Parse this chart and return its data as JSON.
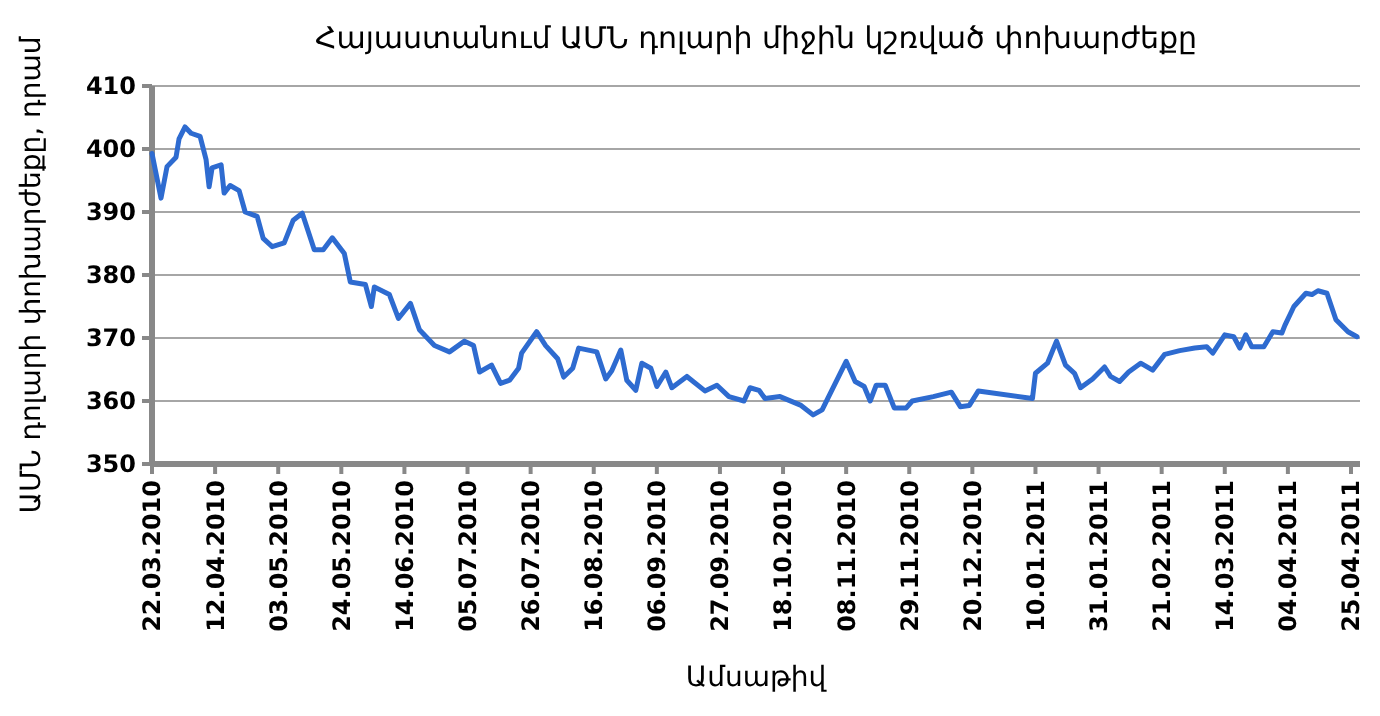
{
  "chart_data": {
    "type": "line",
    "title": "Հայաստանում ԱՄՆ դոլարի միջին կշռված փոխարժեքը",
    "xlabel": "Ամսաթիվ",
    "ylabel": "ԱՄՆ դոլարի փոխարժեքը, դրամ",
    "x": [
      "2010-03-22",
      "2010-03-25",
      "2010-03-27",
      "2010-03-30",
      "2010-03-31",
      "2010-04-02",
      "2010-04-04",
      "2010-04-07",
      "2010-04-09",
      "2010-04-10",
      "2010-04-11",
      "2010-04-14",
      "2010-04-15",
      "2010-04-17",
      "2010-04-20",
      "2010-04-22",
      "2010-04-26",
      "2010-04-28",
      "2010-05-01",
      "2010-05-05",
      "2010-05-08",
      "2010-05-11",
      "2010-05-15",
      "2010-05-18",
      "2010-05-21",
      "2010-05-25",
      "2010-05-27",
      "2010-06-01",
      "2010-06-03",
      "2010-06-04",
      "2010-06-09",
      "2010-06-12",
      "2010-06-16",
      "2010-06-19",
      "2010-06-24",
      "2010-06-29",
      "2010-07-04",
      "2010-07-07",
      "2010-07-09",
      "2010-07-13",
      "2010-07-16",
      "2010-07-19",
      "2010-07-22",
      "2010-07-23",
      "2010-07-28",
      "2010-07-31",
      "2010-08-04",
      "2010-08-06",
      "2010-08-09",
      "2010-08-11",
      "2010-08-17",
      "2010-08-20",
      "2010-08-22",
      "2010-08-25",
      "2010-08-27",
      "2010-08-30",
      "2010-09-01",
      "2010-09-04",
      "2010-09-06",
      "2010-09-09",
      "2010-09-11",
      "2010-09-16",
      "2010-09-22",
      "2010-09-26",
      "2010-09-30",
      "2010-10-05",
      "2010-10-07",
      "2010-10-10",
      "2010-10-12",
      "2010-10-17",
      "2010-10-24",
      "2010-10-28",
      "2010-10-31",
      "2010-11-08",
      "2010-11-11",
      "2010-11-14",
      "2010-11-16",
      "2010-11-18",
      "2010-11-21",
      "2010-11-24",
      "2010-11-28",
      "2010-11-30",
      "2010-12-07",
      "2010-12-13",
      "2010-12-16",
      "2010-12-19",
      "2010-12-22",
      "2011-01-09",
      "2011-01-10",
      "2011-01-14",
      "2011-01-17",
      "2011-01-20",
      "2011-01-23",
      "2011-01-25",
      "2011-01-29",
      "2011-02-02",
      "2011-02-04",
      "2011-02-07",
      "2011-02-10",
      "2011-02-14",
      "2011-02-18",
      "2011-02-22",
      "2011-02-27",
      "2011-03-04",
      "2011-03-08",
      "2011-03-10",
      "2011-03-14",
      "2011-03-17",
      "2011-03-19",
      "2011-03-21",
      "2011-03-23",
      "2011-03-27",
      "2011-03-30",
      "2011-04-02",
      "2011-04-03",
      "2011-04-06",
      "2011-04-10",
      "2011-04-12",
      "2011-04-14",
      "2011-04-17",
      "2011-04-20",
      "2011-04-24",
      "2011-04-27"
    ],
    "series": [
      {
        "color": "#2e6bd0",
        "values": [
          399.3,
          392.2,
          397.2,
          398.7,
          401.6,
          403.5,
          402.5,
          402.0,
          398.3,
          394.0,
          397.0,
          397.5,
          393.0,
          394.2,
          393.4,
          390.0,
          389.3,
          385.8,
          384.5,
          385.1,
          388.7,
          389.8,
          384.0,
          384.0,
          385.9,
          383.4,
          378.9,
          378.5,
          375.0,
          378.1,
          376.9,
          373.1,
          375.5,
          371.3,
          368.8,
          367.8,
          369.5,
          368.8,
          364.6,
          365.7,
          362.8,
          363.3,
          365.2,
          367.6,
          371.0,
          368.8,
          366.7,
          363.8,
          365.2,
          368.4,
          367.8,
          363.5,
          364.8,
          368.1,
          363.3,
          361.7,
          366.0,
          365.2,
          362.3,
          364.6,
          362.1,
          363.9,
          361.6,
          362.5,
          360.7,
          360.0,
          362.1,
          361.7,
          360.4,
          360.7,
          359.3,
          357.8,
          358.6,
          366.3,
          363.1,
          362.3,
          360.0,
          362.5,
          362.5,
          358.9,
          358.9,
          360.0,
          360.7,
          361.4,
          359.1,
          359.3,
          361.6,
          360.4,
          364.4,
          366.0,
          369.5,
          365.7,
          364.4,
          362.1,
          363.5,
          365.4,
          363.9,
          363.1,
          364.6,
          366.0,
          364.9,
          367.4,
          368.0,
          368.4,
          368.6,
          367.6,
          370.5,
          370.2,
          368.4,
          370.5,
          368.6,
          368.6,
          371.0,
          370.8,
          372.0,
          375.0,
          377.1,
          376.9,
          377.5,
          377.1,
          372.9,
          371.0,
          370.2
        ]
      }
    ],
    "xlim": [
      "2010-03-22",
      "2011-04-28"
    ],
    "xticks": [
      {
        "value": "2010-03-22",
        "label": "22.03.2010"
      },
      {
        "value": "2010-04-12",
        "label": "12.04.2010"
      },
      {
        "value": "2010-05-03",
        "label": "03.05.2010"
      },
      {
        "value": "2010-05-24",
        "label": "24.05.2010"
      },
      {
        "value": "2010-06-14",
        "label": "14.06.2010"
      },
      {
        "value": "2010-07-05",
        "label": "05.07.2010"
      },
      {
        "value": "2010-07-26",
        "label": "26.07.2010"
      },
      {
        "value": "2010-08-16",
        "label": "16.08.2010"
      },
      {
        "value": "2010-09-06",
        "label": "06.09.2010"
      },
      {
        "value": "2010-09-27",
        "label": "27.09.2010"
      },
      {
        "value": "2010-10-18",
        "label": "18.10.2010"
      },
      {
        "value": "2010-11-08",
        "label": "08.11.2010"
      },
      {
        "value": "2010-11-29",
        "label": "29.11.2010"
      },
      {
        "value": "2010-12-20",
        "label": "20.12.2010"
      },
      {
        "value": "2011-01-10",
        "label": "10.01.2011"
      },
      {
        "value": "2011-01-31",
        "label": "31.01.2011"
      },
      {
        "value": "2011-02-21",
        "label": "21.02.2011"
      },
      {
        "value": "2011-03-14",
        "label": "14.03.2011"
      },
      {
        "value": "2011-04-04",
        "label": "04.04.2011"
      },
      {
        "value": "2011-04-25",
        "label": "25.04.2011"
      }
    ],
    "ylim": [
      350,
      410
    ],
    "yticks": [
      350,
      360,
      370,
      380,
      390,
      400,
      410
    ],
    "grid": "y",
    "marker": "none",
    "line_style": "solid"
  }
}
